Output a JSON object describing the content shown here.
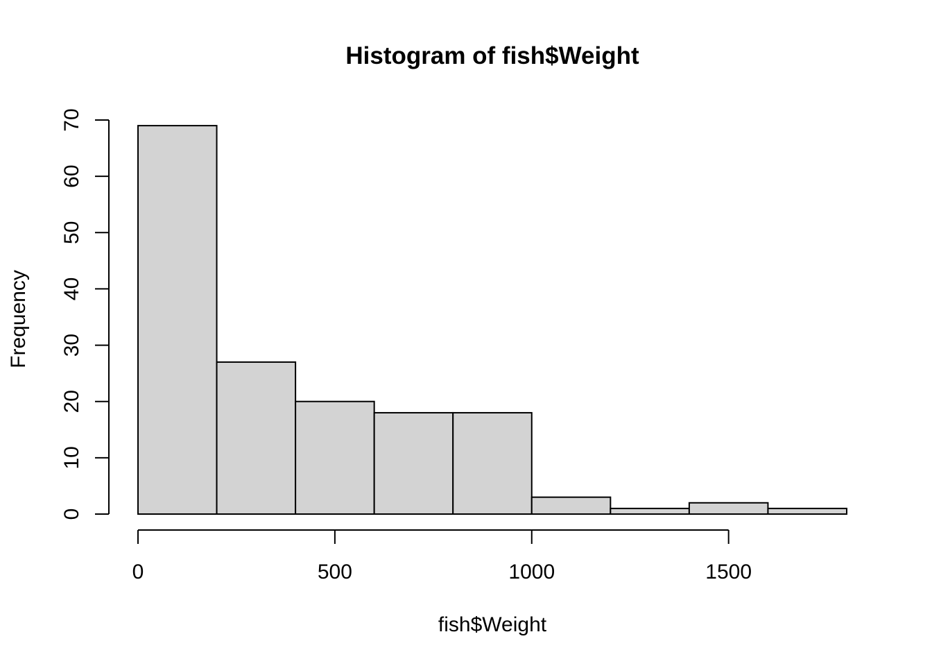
{
  "chart_data": {
    "type": "bar",
    "title": "Histogram of fish$Weight",
    "xlabel": "fish$Weight",
    "ylabel": "Frequency",
    "bins": [
      {
        "start": 0,
        "end": 200,
        "count": 69
      },
      {
        "start": 200,
        "end": 400,
        "count": 27
      },
      {
        "start": 400,
        "end": 600,
        "count": 20
      },
      {
        "start": 600,
        "end": 800,
        "count": 18
      },
      {
        "start": 800,
        "end": 1000,
        "count": 18
      },
      {
        "start": 1000,
        "end": 1200,
        "count": 3
      },
      {
        "start": 1200,
        "end": 1400,
        "count": 1
      },
      {
        "start": 1400,
        "end": 1600,
        "count": 2
      },
      {
        "start": 1600,
        "end": 1800,
        "count": 1
      }
    ],
    "xlim": [
      0,
      1800
    ],
    "ylim": [
      0,
      70
    ],
    "x_ticks": [
      0,
      500,
      1000,
      1500
    ],
    "y_ticks": [
      0,
      10,
      20,
      30,
      40,
      50,
      60,
      70
    ],
    "x_tick_labels": [
      "0",
      "500",
      "1000",
      "1500"
    ],
    "y_tick_labels": [
      "0",
      "10",
      "20",
      "30",
      "40",
      "50",
      "60",
      "70"
    ],
    "grid": false,
    "legend": "none",
    "bar_color": "#d3d3d3",
    "edge_color": "#000000"
  }
}
